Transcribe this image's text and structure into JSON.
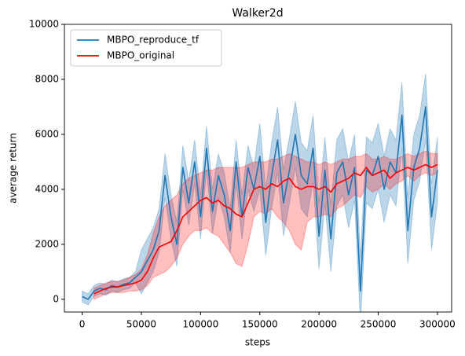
{
  "chart_data": {
    "type": "line",
    "title": "Walker2d",
    "x_label": "steps",
    "y_label": "average return",
    "x": [
      0,
      5000,
      10000,
      15000,
      20000,
      25000,
      30000,
      35000,
      40000,
      45000,
      50000,
      55000,
      60000,
      65000,
      70000,
      75000,
      80000,
      85000,
      90000,
      95000,
      100000,
      105000,
      110000,
      115000,
      120000,
      125000,
      130000,
      135000,
      140000,
      145000,
      150000,
      155000,
      160000,
      165000,
      170000,
      175000,
      180000,
      185000,
      190000,
      195000,
      200000,
      205000,
      210000,
      215000,
      220000,
      225000,
      230000,
      235000,
      240000,
      245000,
      250000,
      255000,
      260000,
      265000,
      270000,
      275000,
      280000,
      285000,
      290000,
      295000,
      300000
    ],
    "series": [
      {
        "name": "MBPO_reproduce_tf",
        "color": "#1f77b4",
        "values": [
          100,
          0,
          300,
          400,
          350,
          500,
          450,
          550,
          600,
          800,
          1000,
          1400,
          1800,
          2500,
          4500,
          3000,
          2000,
          4800,
          3500,
          5000,
          3000,
          5500,
          3200,
          4500,
          3800,
          2500,
          5000,
          3000,
          4800,
          4000,
          5200,
          2800,
          4500,
          5800,
          3500,
          4700,
          6000,
          4500,
          4200,
          5500,
          2300,
          4700,
          2200,
          4600,
          5000,
          3800,
          4800,
          300,
          4700,
          4500,
          5200,
          4000,
          5000,
          4600,
          6700,
          2500,
          4800,
          5500,
          7000,
          3000,
          4700
        ],
        "lower": [
          -100,
          -200,
          100,
          200,
          150,
          300,
          250,
          350,
          400,
          600,
          200,
          600,
          1000,
          1700,
          3700,
          2200,
          1200,
          4000,
          2700,
          4200,
          2200,
          4700,
          2400,
          3700,
          3000,
          1700,
          4200,
          2200,
          4000,
          3200,
          4000,
          1600,
          3300,
          4600,
          2300,
          3500,
          4800,
          3300,
          3000,
          4300,
          1100,
          3500,
          1000,
          3400,
          3800,
          2600,
          3600,
          -900,
          3500,
          3300,
          4000,
          2800,
          3800,
          3400,
          5500,
          1300,
          3600,
          4300,
          5800,
          1800,
          3500
        ],
        "upper": [
          300,
          200,
          500,
          600,
          550,
          700,
          650,
          750,
          800,
          1000,
          1800,
          2200,
          2600,
          3300,
          5300,
          3800,
          2800,
          5600,
          4300,
          5800,
          3800,
          6300,
          4000,
          5300,
          4600,
          3300,
          5800,
          3800,
          5600,
          4800,
          6400,
          4000,
          5700,
          7000,
          4700,
          5900,
          7200,
          5700,
          5400,
          6700,
          3500,
          5900,
          3400,
          5800,
          6200,
          5000,
          6000,
          1500,
          5900,
          5700,
          6400,
          5200,
          6200,
          5800,
          7900,
          3700,
          6000,
          6700,
          8200,
          4200,
          5900
        ]
      },
      {
        "name": "MBPO_original",
        "color": "#ff0000",
        "values": [
          null,
          null,
          200,
          300,
          400,
          450,
          450,
          500,
          550,
          600,
          700,
          1000,
          1500,
          1900,
          2000,
          2100,
          2500,
          3000,
          3200,
          3400,
          3600,
          3700,
          3500,
          3600,
          3400,
          3300,
          3100,
          3000,
          3500,
          4000,
          4100,
          4000,
          4200,
          4100,
          4300,
          4400,
          4100,
          4000,
          4100,
          4100,
          4000,
          4100,
          3900,
          4200,
          4300,
          4400,
          4600,
          4500,
          4800,
          4500,
          4600,
          4700,
          4400,
          4600,
          4700,
          4800,
          4700,
          4800,
          4900,
          4800,
          4900
        ],
        "lower": [
          null,
          null,
          0,
          100,
          200,
          250,
          250,
          250,
          300,
          300,
          350,
          500,
          800,
          900,
          1000,
          1200,
          1500,
          2000,
          2300,
          2500,
          2500,
          2600,
          2400,
          2300,
          2000,
          1700,
          1300,
          1200,
          2000,
          3000,
          3200,
          3100,
          3300,
          3000,
          2800,
          2500,
          2000,
          1800,
          2800,
          3000,
          3000,
          3100,
          3000,
          3300,
          3400,
          3600,
          3800,
          3700,
          4100,
          3900,
          4000,
          4200,
          4000,
          4200,
          4300,
          4500,
          4300,
          4500,
          4600,
          4500,
          4600
        ],
        "upper": [
          null,
          null,
          400,
          500,
          600,
          650,
          650,
          700,
          800,
          900,
          1100,
          1600,
          2400,
          3000,
          3400,
          3600,
          3800,
          4200,
          4400,
          4500,
          4600,
          4700,
          4700,
          4800,
          4800,
          4800,
          4800,
          4800,
          4900,
          5000,
          5000,
          5000,
          5100,
          5100,
          5200,
          5300,
          5200,
          5100,
          5000,
          5000,
          4900,
          5000,
          4900,
          5000,
          5100,
          5100,
          5200,
          5200,
          5300,
          5100,
          5100,
          5200,
          5100,
          5100,
          5200,
          5300,
          5200,
          5300,
          5400,
          5300,
          5300
        ]
      }
    ],
    "xlim": [
      -15000,
      312000
    ],
    "ylim": [
      -460,
      10000
    ],
    "xticks": [
      0,
      50000,
      100000,
      150000,
      200000,
      250000,
      300000
    ],
    "yticks": [
      0,
      2000,
      4000,
      6000,
      8000,
      10000
    ],
    "legend": "upper left"
  }
}
